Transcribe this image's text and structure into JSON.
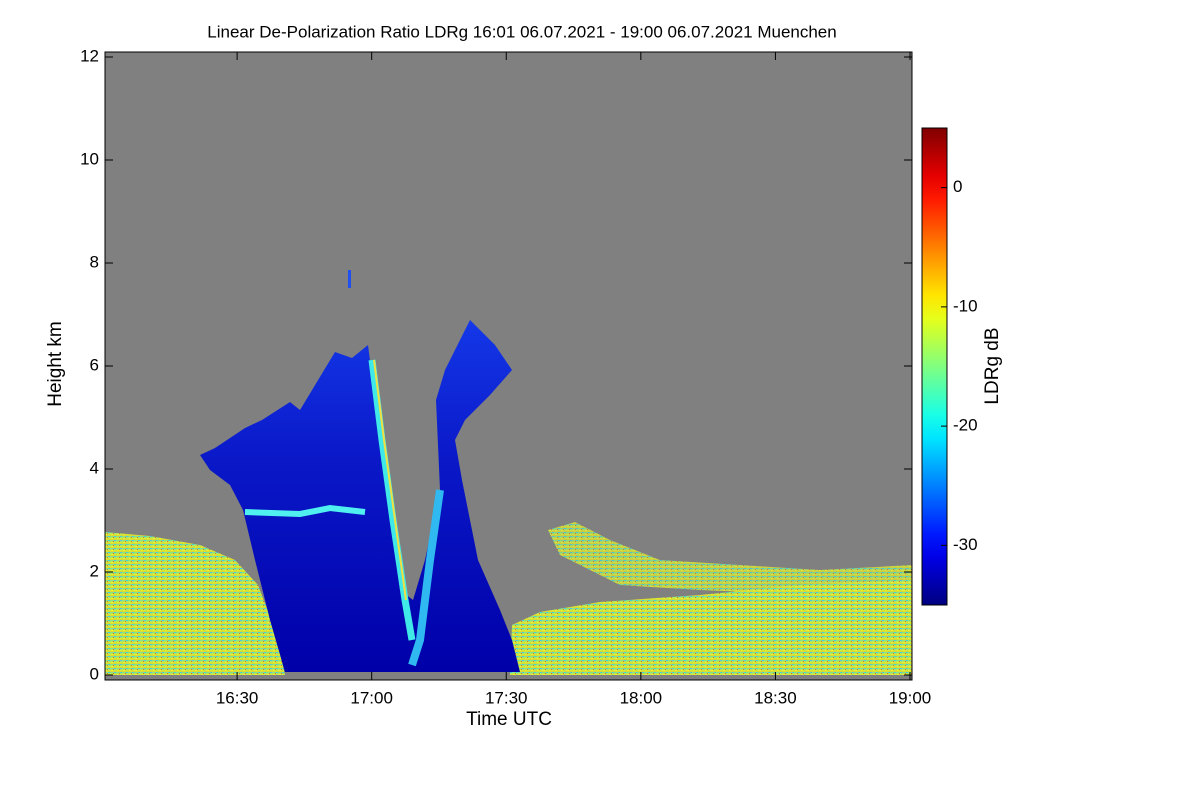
{
  "chart_data": {
    "type": "heatmap",
    "title": "Linear De-Polarization Ratio LDRg   16:01 06.07.2021 - 19:00 06.07.2021 Muenchen",
    "x_label": "Time UTC",
    "y_label": "Height km",
    "xlim": [
      961,
      1140
    ],
    "xticks": [
      {
        "value": 990,
        "label": "16:30"
      },
      {
        "value": 1020,
        "label": "17:00"
      },
      {
        "value": 1050,
        "label": "17:30"
      },
      {
        "value": 1080,
        "label": "18:00"
      },
      {
        "value": 1110,
        "label": "18:30"
      },
      {
        "value": 1140,
        "label": "19:00"
      }
    ],
    "ylim": [
      0,
      12
    ],
    "yticks": [
      0,
      2,
      4,
      6,
      8,
      10,
      12
    ],
    "colorbar": {
      "label": "LDRg dB",
      "clim": [
        -35,
        5
      ],
      "ticks": [
        0,
        -10,
        -20,
        -30
      ],
      "colormap": "jet"
    }
  }
}
